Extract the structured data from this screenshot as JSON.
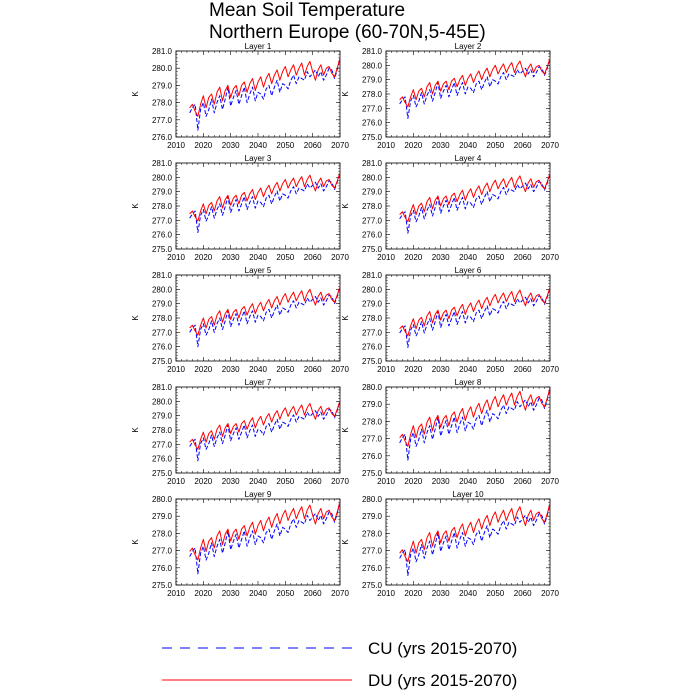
{
  "title_line1": "Mean Soil Temperature",
  "title_line2": "Northern Europe (60-70N,5-45E)",
  "colors": {
    "cu": "#0000ff",
    "du": "#ff0000"
  },
  "legend": [
    {
      "key": "cu",
      "label": "CU (yrs 2015-2070)",
      "style": "dashed"
    },
    {
      "key": "du",
      "label": "DU (yrs 2015-2070)",
      "style": "solid"
    }
  ],
  "chart_data": [
    {
      "type": "line",
      "title": "Layer 1",
      "ylabel": "K",
      "xlim": [
        2010,
        2070
      ],
      "ylim": [
        276.0,
        281.0
      ],
      "xticks": [
        2010,
        2020,
        2030,
        2040,
        2050,
        2060,
        2070
      ],
      "yticks": [
        "276.0",
        "277.0",
        "278.0",
        "279.0",
        "280.0",
        "281.0"
      ],
      "series": [
        {
          "key": "cu",
          "shift": 0.0
        },
        {
          "key": "du",
          "shift": 0.0
        }
      ]
    },
    {
      "type": "line",
      "title": "Layer 2",
      "ylabel": "K",
      "xlim": [
        2010,
        2070
      ],
      "ylim": [
        275.0,
        281.0
      ],
      "xticks": [
        2010,
        2020,
        2030,
        2040,
        2050,
        2060,
        2070
      ],
      "yticks": [
        "275.0",
        "276.0",
        "277.0",
        "278.0",
        "279.0",
        "280.0",
        "281.0"
      ],
      "series": [
        {
          "key": "cu",
          "shift": -0.1
        },
        {
          "key": "du",
          "shift": -0.1
        }
      ]
    },
    {
      "type": "line",
      "title": "Layer 3",
      "ylabel": "K",
      "xlim": [
        2010,
        2070
      ],
      "ylim": [
        275.0,
        281.0
      ],
      "xticks": [
        2010,
        2020,
        2030,
        2040,
        2050,
        2060,
        2070
      ],
      "yticks": [
        "275.0",
        "276.0",
        "277.0",
        "278.0",
        "279.0",
        "280.0",
        "281.0"
      ],
      "series": [
        {
          "key": "cu",
          "shift": -0.25
        },
        {
          "key": "du",
          "shift": -0.25
        }
      ]
    },
    {
      "type": "line",
      "title": "Layer 4",
      "ylabel": "K",
      "xlim": [
        2010,
        2070
      ],
      "ylim": [
        275.0,
        281.0
      ],
      "xticks": [
        2010,
        2020,
        2030,
        2040,
        2050,
        2060,
        2070
      ],
      "yticks": [
        "275.0",
        "276.0",
        "277.0",
        "278.0",
        "279.0",
        "280.0",
        "281.0"
      ],
      "series": [
        {
          "key": "cu",
          "shift": -0.3
        },
        {
          "key": "du",
          "shift": -0.3
        }
      ]
    },
    {
      "type": "line",
      "title": "Layer 5",
      "ylabel": "K",
      "xlim": [
        2010,
        2070
      ],
      "ylim": [
        275.0,
        281.0
      ],
      "xticks": [
        2010,
        2020,
        2030,
        2040,
        2050,
        2060,
        2070
      ],
      "yticks": [
        "275.0",
        "276.0",
        "277.0",
        "278.0",
        "279.0",
        "280.0",
        "281.0"
      ],
      "series": [
        {
          "key": "cu",
          "shift": -0.4
        },
        {
          "key": "du",
          "shift": -0.4
        }
      ]
    },
    {
      "type": "line",
      "title": "Layer 6",
      "ylabel": "K",
      "xlim": [
        2010,
        2070
      ],
      "ylim": [
        275.0,
        281.0
      ],
      "xticks": [
        2010,
        2020,
        2030,
        2040,
        2050,
        2060,
        2070
      ],
      "yticks": [
        "275.0",
        "276.0",
        "277.0",
        "278.0",
        "279.0",
        "280.0",
        "281.0"
      ],
      "series": [
        {
          "key": "cu",
          "shift": -0.45
        },
        {
          "key": "du",
          "shift": -0.45
        }
      ]
    },
    {
      "type": "line",
      "title": "Layer 7",
      "ylabel": "K",
      "xlim": [
        2010,
        2070
      ],
      "ylim": [
        275.0,
        281.0
      ],
      "xticks": [
        2010,
        2020,
        2030,
        2040,
        2050,
        2060,
        2070
      ],
      "yticks": [
        "275.0",
        "276.0",
        "277.0",
        "278.0",
        "279.0",
        "280.0",
        "281.0"
      ],
      "series": [
        {
          "key": "cu",
          "shift": -0.55
        },
        {
          "key": "du",
          "shift": -0.55
        }
      ]
    },
    {
      "type": "line",
      "title": "Layer 8",
      "ylabel": "K",
      "xlim": [
        2010,
        2070
      ],
      "ylim": [
        275.0,
        280.0
      ],
      "xticks": [
        2010,
        2020,
        2030,
        2040,
        2050,
        2060,
        2070
      ],
      "yticks": [
        "275.0",
        "276.0",
        "277.0",
        "278.0",
        "279.0",
        "280.0"
      ],
      "series": [
        {
          "key": "cu",
          "shift": -0.65
        },
        {
          "key": "du",
          "shift": -0.65
        }
      ]
    },
    {
      "type": "line",
      "title": "Layer 9",
      "ylabel": "K",
      "xlim": [
        2010,
        2070
      ],
      "ylim": [
        275.0,
        280.0
      ],
      "xticks": [
        2010,
        2020,
        2030,
        2040,
        2050,
        2060,
        2070
      ],
      "yticks": [
        "275.0",
        "276.0",
        "277.0",
        "278.0",
        "279.0",
        "280.0"
      ],
      "series": [
        {
          "key": "cu",
          "shift": -0.75
        },
        {
          "key": "du",
          "shift": -0.75
        }
      ]
    },
    {
      "type": "line",
      "title": "Layer 10",
      "ylabel": "K",
      "xlim": [
        2010,
        2070
      ],
      "ylim": [
        275.0,
        280.0
      ],
      "xticks": [
        2010,
        2020,
        2030,
        2040,
        2050,
        2060,
        2070
      ],
      "yticks": [
        "275.0",
        "276.0",
        "277.0",
        "278.0",
        "279.0",
        "280.0"
      ],
      "series": [
        {
          "key": "cu",
          "shift": -0.85
        },
        {
          "key": "du",
          "shift": -0.85
        }
      ]
    }
  ],
  "base_series": {
    "years": [
      2015,
      2016,
      2017,
      2018,
      2019,
      2020,
      2021,
      2022,
      2023,
      2024,
      2025,
      2026,
      2027,
      2028,
      2029,
      2030,
      2031,
      2032,
      2033,
      2034,
      2035,
      2036,
      2037,
      2038,
      2039,
      2040,
      2041,
      2042,
      2043,
      2044,
      2045,
      2046,
      2047,
      2048,
      2049,
      2050,
      2051,
      2052,
      2053,
      2054,
      2055,
      2056,
      2057,
      2058,
      2059,
      2060,
      2061,
      2062,
      2063,
      2064,
      2065,
      2066,
      2067,
      2068,
      2069,
      2070
    ],
    "cu": [
      277.4,
      277.7,
      277.9,
      276.4,
      277.6,
      278.0,
      277.2,
      277.6,
      278.2,
      277.4,
      278.0,
      278.4,
      277.6,
      278.2,
      278.9,
      277.8,
      278.3,
      278.7,
      277.9,
      278.4,
      278.9,
      278.0,
      278.5,
      278.9,
      278.1,
      278.6,
      278.5,
      278.2,
      278.8,
      279.0,
      278.4,
      278.9,
      279.3,
      278.6,
      279.1,
      279.0,
      278.8,
      279.3,
      279.6,
      279.1,
      279.5,
      279.4,
      279.3,
      279.8,
      279.5,
      279.7,
      279.9,
      279.5,
      279.8,
      279.3,
      279.6,
      280.0,
      279.9,
      279.4,
      279.9,
      280.6
    ],
    "du": [
      277.7,
      277.9,
      277.5,
      277.2,
      277.9,
      278.4,
      277.7,
      278.3,
      278.5,
      277.9,
      278.6,
      278.9,
      278.1,
      278.7,
      279.0,
      278.3,
      278.8,
      279.0,
      278.4,
      279.0,
      279.2,
      278.6,
      279.1,
      279.4,
      278.7,
      279.2,
      279.5,
      278.9,
      279.4,
      279.7,
      279.1,
      279.6,
      279.9,
      279.3,
      279.8,
      280.1,
      279.5,
      279.9,
      280.2,
      279.6,
      280.0,
      280.3,
      279.6,
      280.1,
      280.4,
      279.8,
      279.3,
      279.9,
      280.2,
      279.6,
      280.0,
      280.1,
      279.7,
      279.5,
      280.0,
      280.6
    ]
  }
}
